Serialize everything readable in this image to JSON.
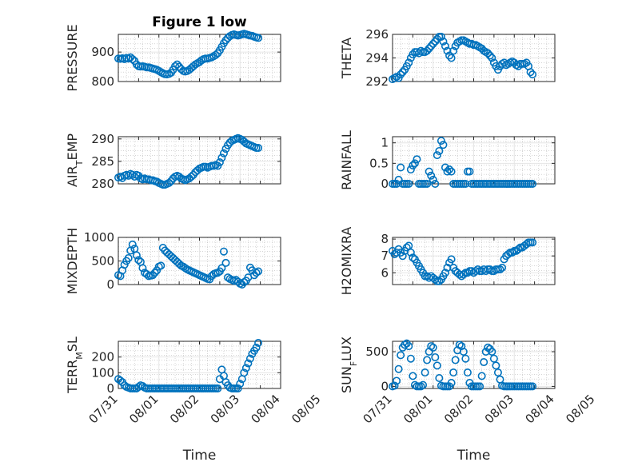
{
  "figure": {
    "title": "Figure 1 low",
    "background": "#ffffff",
    "marker_color": "#0072BD"
  },
  "chart_data": [
    {
      "type": "scatter",
      "ylabel": "PRESSURE",
      "title": "Figure 1 low",
      "ylim": [
        800,
        960
      ],
      "yticks": [
        800,
        900
      ],
      "ytick_labels": [
        "800",
        "900"
      ],
      "xlim": [
        0,
        4
      ],
      "grid": true,
      "minor_grid": true,
      "x": [
        0.0,
        0.05,
        0.1,
        0.15,
        0.2,
        0.25,
        0.3,
        0.35,
        0.4,
        0.45,
        0.5,
        0.55,
        0.6,
        0.65,
        0.7,
        0.75,
        0.8,
        0.85,
        0.9,
        0.95,
        1.0,
        1.05,
        1.1,
        1.15,
        1.2,
        1.25,
        1.3,
        1.35,
        1.4,
        1.45,
        1.5,
        1.55,
        1.6,
        1.65,
        1.7,
        1.75,
        1.8,
        1.85,
        1.9,
        1.95,
        2.0,
        2.05,
        2.1,
        2.15,
        2.2,
        2.25,
        2.3,
        2.35,
        2.4,
        2.45,
        2.5,
        2.55,
        2.6,
        2.65,
        2.7,
        2.75,
        2.8,
        2.85,
        2.9,
        2.95,
        3.0,
        3.05,
        3.1,
        3.15,
        3.2,
        3.25,
        3.3,
        3.35,
        3.4,
        3.45
      ],
      "y": [
        878,
        877,
        879,
        876,
        880,
        878,
        882,
        876,
        870,
        858,
        852,
        851,
        852,
        850,
        848,
        848,
        846,
        844,
        842,
        840,
        836,
        832,
        828,
        825,
        824,
        826,
        830,
        840,
        852,
        858,
        850,
        842,
        836,
        834,
        836,
        840,
        846,
        852,
        858,
        862,
        866,
        872,
        876,
        878,
        878,
        880,
        882,
        886,
        890,
        896,
        906,
        918,
        930,
        940,
        948,
        954,
        958,
        960,
        958,
        956,
        958,
        960,
        962,
        960,
        958,
        956,
        955,
        952,
        950,
        948
      ]
    },
    {
      "type": "scatter",
      "ylabel": "THETA",
      "ylim": [
        292,
        296
      ],
      "yticks": [
        292,
        294,
        296
      ],
      "ytick_labels": [
        "292",
        "294",
        "296"
      ],
      "xlim": [
        0,
        4
      ],
      "grid": true,
      "minor_grid": true,
      "x": [
        0.0,
        0.05,
        0.1,
        0.15,
        0.2,
        0.25,
        0.3,
        0.35,
        0.4,
        0.45,
        0.5,
        0.55,
        0.6,
        0.65,
        0.7,
        0.75,
        0.8,
        0.85,
        0.9,
        0.95,
        1.0,
        1.05,
        1.1,
        1.15,
        1.2,
        1.25,
        1.3,
        1.35,
        1.4,
        1.45,
        1.5,
        1.55,
        1.6,
        1.65,
        1.7,
        1.75,
        1.8,
        1.85,
        1.9,
        1.95,
        2.0,
        2.05,
        2.1,
        2.15,
        2.2,
        2.25,
        2.3,
        2.35,
        2.4,
        2.45,
        2.5,
        2.55,
        2.6,
        2.65,
        2.7,
        2.75,
        2.8,
        2.85,
        2.9,
        2.95,
        3.0,
        3.05,
        3.1,
        3.15,
        3.2,
        3.25,
        3.3,
        3.35,
        3.4,
        3.45
      ],
      "y": [
        292.2,
        292.3,
        292.4,
        292.3,
        292.6,
        292.8,
        293.0,
        293.3,
        293.6,
        294.0,
        294.3,
        294.5,
        294.5,
        294.4,
        294.6,
        294.5,
        294.5,
        294.6,
        294.8,
        295.0,
        295.2,
        295.4,
        295.6,
        295.8,
        295.8,
        295.4,
        295.0,
        294.6,
        294.2,
        294.0,
        294.6,
        295.0,
        295.3,
        295.4,
        295.5,
        295.5,
        295.4,
        295.3,
        295.2,
        295.2,
        295.1,
        295.1,
        295.0,
        294.9,
        294.8,
        294.6,
        294.5,
        294.4,
        294.2,
        294.0,
        293.6,
        293.3,
        293.0,
        293.3,
        293.5,
        293.6,
        293.4,
        293.5,
        293.6,
        293.7,
        293.6,
        293.4,
        293.3,
        293.5,
        293.5,
        293.5,
        293.6,
        293.3,
        292.8,
        292.6
      ]
    },
    {
      "type": "scatter",
      "ylabel": "AIR_TEMP",
      "ylim": [
        280,
        290.5
      ],
      "yticks": [
        280,
        285,
        290
      ],
      "ytick_labels": [
        "280",
        "285",
        "290"
      ],
      "xlim": [
        0,
        4
      ],
      "grid": true,
      "minor_grid": true,
      "x": [
        0.0,
        0.05,
        0.1,
        0.15,
        0.2,
        0.25,
        0.3,
        0.35,
        0.4,
        0.45,
        0.5,
        0.55,
        0.6,
        0.65,
        0.7,
        0.75,
        0.8,
        0.85,
        0.9,
        0.95,
        1.0,
        1.05,
        1.1,
        1.15,
        1.2,
        1.25,
        1.3,
        1.35,
        1.4,
        1.45,
        1.5,
        1.55,
        1.6,
        1.65,
        1.7,
        1.75,
        1.8,
        1.85,
        1.9,
        1.95,
        2.0,
        2.05,
        2.1,
        2.15,
        2.2,
        2.25,
        2.3,
        2.35,
        2.4,
        2.45,
        2.5,
        2.55,
        2.6,
        2.65,
        2.7,
        2.75,
        2.8,
        2.85,
        2.9,
        2.95,
        3.0,
        3.05,
        3.1,
        3.15,
        3.2,
        3.25,
        3.3,
        3.35,
        3.4,
        3.45
      ],
      "y": [
        281.4,
        281.6,
        281.3,
        281.8,
        282.0,
        281.8,
        282.2,
        282.0,
        281.6,
        282.0,
        281.8,
        281.2,
        281.0,
        281.2,
        281.0,
        281.0,
        280.8,
        280.8,
        280.6,
        280.5,
        280.2,
        280.0,
        279.8,
        279.8,
        280.0,
        280.2,
        280.6,
        281.2,
        281.6,
        281.8,
        281.6,
        281.2,
        281.0,
        280.8,
        281.0,
        281.2,
        281.6,
        282.0,
        282.6,
        283.0,
        283.4,
        283.6,
        283.8,
        283.8,
        283.6,
        283.8,
        284.0,
        284.0,
        284.2,
        284.0,
        284.8,
        285.8,
        286.8,
        287.8,
        288.6,
        289.2,
        289.6,
        289.8,
        290.0,
        290.2,
        290.0,
        289.8,
        289.4,
        289.0,
        288.8,
        288.6,
        288.4,
        288.2,
        288.0,
        288.0
      ]
    },
    {
      "type": "scatter",
      "ylabel": "RAINFALL",
      "ylim": [
        0,
        1.15
      ],
      "yticks": [
        0,
        0.5,
        1
      ],
      "ytick_labels": [
        "0",
        "0.5",
        "1"
      ],
      "xlim": [
        0,
        4
      ],
      "grid": true,
      "minor_grid": true,
      "x": [
        0.0,
        0.05,
        0.1,
        0.15,
        0.2,
        0.25,
        0.3,
        0.35,
        0.4,
        0.45,
        0.5,
        0.55,
        0.6,
        0.65,
        0.7,
        0.75,
        0.8,
        0.85,
        0.9,
        0.95,
        1.0,
        1.05,
        1.1,
        1.15,
        1.2,
        1.25,
        1.3,
        1.35,
        1.4,
        1.45,
        1.5,
        1.55,
        1.6,
        1.65,
        1.7,
        1.75,
        1.8,
        1.85,
        1.9,
        1.95,
        2.0,
        2.05,
        2.1,
        2.15,
        2.2,
        2.25,
        2.3,
        2.35,
        2.4,
        2.45,
        2.5,
        2.55,
        2.6,
        2.65,
        2.7,
        2.75,
        2.8,
        2.85,
        2.9,
        2.95,
        3.0,
        3.05,
        3.1,
        3.15,
        3.2,
        3.25,
        3.3,
        3.35,
        3.4,
        3.45
      ],
      "y": [
        0,
        0,
        0,
        0.1,
        0.4,
        0,
        0,
        0,
        0,
        0.35,
        0.45,
        0.5,
        0.6,
        0,
        0,
        0,
        0,
        0,
        0.3,
        0.2,
        0.1,
        0,
        0.7,
        0.8,
        1.05,
        0.95,
        0.4,
        0.3,
        0.35,
        0.3,
        0,
        0,
        0,
        0,
        0,
        0,
        0,
        0.3,
        0.3,
        0,
        0,
        0,
        0,
        0,
        0,
        0,
        0,
        0,
        0,
        0,
        0,
        0,
        0,
        0,
        0,
        0,
        0,
        0,
        0,
        0,
        0,
        0,
        0,
        0,
        0,
        0,
        0,
        0,
        0,
        0
      ]
    },
    {
      "type": "scatter",
      "ylabel": "MIXDEPTH",
      "ylim": [
        0,
        1000
      ],
      "yticks": [
        0,
        500,
        1000
      ],
      "ytick_labels": [
        "0",
        "500",
        "1000"
      ],
      "xlim": [
        0,
        4
      ],
      "grid": true,
      "minor_grid": true,
      "x": [
        0.0,
        0.05,
        0.1,
        0.15,
        0.2,
        0.25,
        0.3,
        0.35,
        0.4,
        0.45,
        0.5,
        0.55,
        0.6,
        0.65,
        0.7,
        0.75,
        0.8,
        0.85,
        0.9,
        0.95,
        1.0,
        1.05,
        1.1,
        1.15,
        1.2,
        1.25,
        1.3,
        1.35,
        1.4,
        1.45,
        1.5,
        1.55,
        1.6,
        1.65,
        1.7,
        1.75,
        1.8,
        1.85,
        1.9,
        1.95,
        2.0,
        2.05,
        2.1,
        2.15,
        2.2,
        2.25,
        2.3,
        2.35,
        2.4,
        2.45,
        2.5,
        2.55,
        2.6,
        2.65,
        2.7,
        2.75,
        2.8,
        2.85,
        2.9,
        2.95,
        3.0,
        3.05,
        3.1,
        3.15,
        3.2,
        3.25,
        3.3,
        3.35,
        3.4,
        3.45
      ],
      "y": [
        200,
        180,
        300,
        420,
        500,
        560,
        720,
        850,
        760,
        620,
        520,
        480,
        350,
        250,
        220,
        180,
        190,
        200,
        250,
        300,
        380,
        400,
        780,
        720,
        680,
        640,
        600,
        560,
        520,
        480,
        440,
        400,
        380,
        350,
        320,
        300,
        280,
        260,
        240,
        220,
        200,
        180,
        160,
        140,
        120,
        110,
        180,
        220,
        240,
        250,
        280,
        350,
        700,
        460,
        150,
        120,
        100,
        80,
        100,
        60,
        20,
        0,
        50,
        80,
        150,
        360,
        300,
        200,
        250,
        280
      ]
    },
    {
      "type": "scatter",
      "ylabel": "H2OMIXRA",
      "ylim": [
        5.3,
        8.1
      ],
      "yticks": [
        6,
        7,
        8
      ],
      "ytick_labels": [
        "6",
        "7",
        "8"
      ],
      "xlim": [
        0,
        4
      ],
      "grid": true,
      "minor_grid": true,
      "x": [
        0.0,
        0.05,
        0.1,
        0.15,
        0.2,
        0.25,
        0.3,
        0.35,
        0.4,
        0.45,
        0.5,
        0.55,
        0.6,
        0.65,
        0.7,
        0.75,
        0.8,
        0.85,
        0.9,
        0.95,
        1.0,
        1.05,
        1.1,
        1.15,
        1.2,
        1.25,
        1.3,
        1.35,
        1.4,
        1.45,
        1.5,
        1.55,
        1.6,
        1.65,
        1.7,
        1.75,
        1.8,
        1.85,
        1.9,
        1.95,
        2.0,
        2.05,
        2.1,
        2.15,
        2.2,
        2.25,
        2.3,
        2.35,
        2.4,
        2.45,
        2.5,
        2.55,
        2.6,
        2.65,
        2.7,
        2.75,
        2.8,
        2.85,
        2.9,
        2.95,
        3.0,
        3.05,
        3.1,
        3.15,
        3.2,
        3.25,
        3.3,
        3.35,
        3.4,
        3.45
      ],
      "y": [
        7.3,
        7.1,
        7.2,
        7.4,
        7.2,
        7.0,
        7.3,
        7.5,
        7.6,
        7.2,
        6.9,
        6.8,
        6.6,
        6.4,
        6.2,
        6.0,
        5.8,
        5.8,
        5.7,
        5.8,
        5.7,
        5.6,
        5.5,
        5.5,
        5.6,
        5.8,
        6.0,
        6.3,
        6.6,
        6.8,
        6.3,
        6.1,
        6.0,
        5.9,
        5.8,
        5.9,
        6.0,
        6.0,
        6.1,
        6.1,
        6.0,
        6.1,
        6.2,
        6.1,
        6.1,
        6.2,
        6.1,
        6.2,
        6.2,
        6.1,
        6.1,
        6.2,
        6.2,
        6.2,
        6.3,
        6.8,
        7.0,
        7.1,
        7.2,
        7.2,
        7.3,
        7.3,
        7.4,
        7.5,
        7.5,
        7.6,
        7.7,
        7.8,
        7.8,
        7.8
      ]
    },
    {
      "type": "scatter",
      "ylabel": "TERR_MSL",
      "ylim": [
        0,
        300
      ],
      "yticks": [
        0,
        100,
        200
      ],
      "ytick_labels": [
        "0",
        "100",
        "200"
      ],
      "xlim": [
        0,
        4
      ],
      "grid": true,
      "minor_grid": true,
      "xticks": [
        0,
        1,
        2,
        3,
        4,
        5
      ],
      "xtick_labels": [
        "07/31",
        "08/01",
        "08/02",
        "08/03",
        "08/04",
        "08/05"
      ],
      "xlabel": "Time",
      "x": [
        0.0,
        0.05,
        0.1,
        0.15,
        0.2,
        0.25,
        0.3,
        0.35,
        0.4,
        0.45,
        0.5,
        0.55,
        0.6,
        0.65,
        0.7,
        0.75,
        0.8,
        0.85,
        0.9,
        0.95,
        1.0,
        1.05,
        1.1,
        1.15,
        1.2,
        1.25,
        1.3,
        1.35,
        1.4,
        1.45,
        1.5,
        1.55,
        1.6,
        1.65,
        1.7,
        1.75,
        1.8,
        1.85,
        1.9,
        1.95,
        2.0,
        2.05,
        2.1,
        2.15,
        2.2,
        2.25,
        2.3,
        2.35,
        2.4,
        2.45,
        2.5,
        2.55,
        2.6,
        2.65,
        2.7,
        2.75,
        2.8,
        2.85,
        2.9,
        2.95,
        3.0,
        3.05,
        3.1,
        3.15,
        3.2,
        3.25,
        3.3,
        3.35,
        3.4,
        3.45
      ],
      "y": [
        60,
        50,
        40,
        20,
        10,
        5,
        0,
        0,
        0,
        0,
        10,
        20,
        15,
        5,
        0,
        0,
        0,
        0,
        0,
        0,
        0,
        0,
        0,
        0,
        0,
        0,
        0,
        0,
        0,
        0,
        0,
        0,
        0,
        0,
        0,
        0,
        0,
        0,
        0,
        0,
        0,
        0,
        0,
        0,
        0,
        0,
        0,
        0,
        0,
        0,
        60,
        120,
        80,
        40,
        20,
        5,
        0,
        0,
        0,
        0,
        30,
        60,
        100,
        130,
        160,
        190,
        220,
        240,
        260,
        290
      ]
    },
    {
      "type": "scatter",
      "ylabel": "SUN_FLUX",
      "ylim": [
        -30,
        650
      ],
      "yticks": [
        0,
        500
      ],
      "ytick_labels": [
        "0",
        "500"
      ],
      "xlim": [
        0,
        4
      ],
      "grid": true,
      "minor_grid": true,
      "xticks": [
        0,
        1,
        2,
        3,
        4,
        5
      ],
      "xtick_labels": [
        "07/31",
        "08/01",
        "08/02",
        "08/03",
        "08/04",
        "08/05"
      ],
      "xlabel": "Time",
      "x": [
        0.0,
        0.05,
        0.1,
        0.15,
        0.2,
        0.25,
        0.3,
        0.35,
        0.4,
        0.45,
        0.5,
        0.55,
        0.6,
        0.65,
        0.7,
        0.75,
        0.8,
        0.85,
        0.9,
        0.95,
        1.0,
        1.05,
        1.1,
        1.15,
        1.2,
        1.25,
        1.3,
        1.35,
        1.4,
        1.45,
        1.5,
        1.55,
        1.6,
        1.65,
        1.7,
        1.75,
        1.8,
        1.85,
        1.9,
        1.95,
        2.0,
        2.05,
        2.1,
        2.15,
        2.2,
        2.25,
        2.3,
        2.35,
        2.4,
        2.45,
        2.5,
        2.55,
        2.6,
        2.65,
        2.7,
        2.75,
        2.8,
        2.85,
        2.9,
        2.95,
        3.0,
        3.05,
        3.1,
        3.15,
        3.2,
        3.25,
        3.3,
        3.35,
        3.4,
        3.45
      ],
      "y": [
        0,
        10,
        80,
        250,
        450,
        560,
        600,
        620,
        580,
        400,
        150,
        20,
        0,
        0,
        0,
        20,
        200,
        380,
        500,
        580,
        560,
        420,
        300,
        120,
        10,
        0,
        0,
        0,
        0,
        50,
        200,
        380,
        520,
        600,
        580,
        500,
        400,
        200,
        50,
        0,
        0,
        0,
        0,
        0,
        150,
        350,
        500,
        560,
        540,
        500,
        400,
        300,
        200,
        100,
        10,
        0,
        0,
        0,
        0,
        0,
        0,
        0,
        0,
        0,
        0,
        0,
        0,
        0,
        0,
        0
      ]
    }
  ]
}
